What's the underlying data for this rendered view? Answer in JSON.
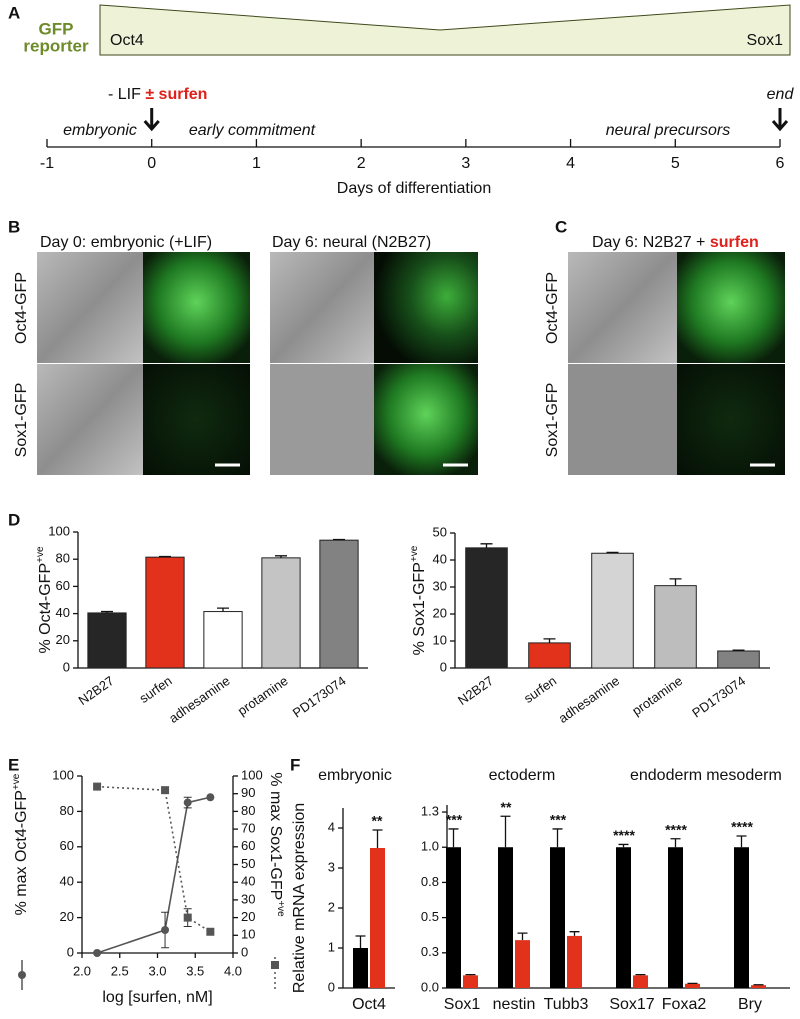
{
  "panel_a": {
    "label": "A",
    "reporter": [
      "GFP",
      "reporter"
    ],
    "gradient": [
      "Oct4",
      "Sox1"
    ],
    "timeline": {
      "xlim": [
        -1,
        6
      ],
      "xticks": [
        -1,
        0,
        1,
        2,
        3,
        4,
        5,
        6
      ],
      "xlabel": "Days of differentiation",
      "phases": [
        "embryonic",
        "early commitment",
        "neural precursors"
      ],
      "events": [
        {
          "day": 0,
          "label": "- LIF",
          "highlight": "± surfen"
        },
        {
          "day": 6,
          "label": "end"
        }
      ]
    }
  },
  "panel_b": {
    "label": "B",
    "titles": [
      "Day 0: embryonic (+LIF)",
      "Day 6: neural (N2B27)"
    ],
    "rows": [
      "Oct4-GFP",
      "Sox1-GFP"
    ]
  },
  "panel_c": {
    "label": "C",
    "title": "Day 6: N2B27 +",
    "highlight": "surfen",
    "rows": [
      "Oct4-GFP",
      "Sox1-GFP"
    ]
  },
  "panel_labels": {
    "d": "D",
    "e": "E",
    "f": "F"
  },
  "chart_data": [
    {
      "type": "bar",
      "ylabel": {
        "text": "% Oct4-GFP",
        "sup": "+ve"
      },
      "categories": [
        "N2B27",
        "surfen",
        "adhesamine",
        "protamine",
        "PD173074"
      ],
      "values": [
        40.5,
        81.5,
        41.5,
        81,
        94
      ],
      "errors": [
        1,
        0.5,
        2.5,
        1.5,
        0.5
      ],
      "colors": [
        "#262626",
        "#e2321c",
        "#ffffff",
        "#c4c4c4",
        "#828282"
      ],
      "ylim": [
        0,
        100
      ],
      "yticks": [
        0,
        20,
        40,
        60,
        80,
        100
      ]
    },
    {
      "type": "bar",
      "ylabel": {
        "text": "% Sox1-GFP",
        "sup": "+ve"
      },
      "categories": [
        "N2B27",
        "surfen",
        "adhesamine",
        "protamine",
        "PD173074"
      ],
      "values": [
        44.5,
        9.3,
        42.5,
        30.5,
        6.3
      ],
      "errors": [
        1.5,
        1.5,
        0.3,
        2.5,
        0.3
      ],
      "colors": [
        "#262626",
        "#e2321c",
        "#d4d4d4",
        "#bdbdbd",
        "#828282"
      ],
      "ylim": [
        0,
        50
      ],
      "yticks": [
        0,
        10,
        20,
        30,
        40,
        50
      ]
    },
    {
      "type": "line",
      "xlabel": "log [surfen, nM]",
      "xlim": [
        2,
        4
      ],
      "xticks": [
        {
          "value": 2,
          "label": "2.0"
        },
        {
          "value": 2.5,
          "label": "2.5"
        },
        {
          "value": 3,
          "label": "3.0"
        },
        {
          "value": 3.5,
          "label": "3.5"
        },
        {
          "value": 4,
          "label": "4.0"
        }
      ],
      "ylim": [
        0,
        100
      ],
      "yticks": [
        0,
        20,
        40,
        60,
        80,
        100
      ],
      "y2lim": [
        0,
        100
      ],
      "y2ticks": [
        0,
        10,
        20,
        30,
        40,
        50,
        60,
        70,
        80,
        90,
        100
      ],
      "ylabel": {
        "text": "% max Oct4-GFP",
        "sup": "+ve"
      },
      "y2label": {
        "text": "% max Sox1-GFP",
        "sup": "+ve"
      },
      "series": [
        {
          "color": "#555555",
          "marker": "circle",
          "style": "solid",
          "x": [
            2.2,
            3.1,
            3.4,
            3.7
          ],
          "values": [
            0,
            13,
            85,
            88
          ],
          "errors": [
            null,
            10,
            3,
            null
          ]
        },
        {
          "color": "#555555",
          "marker": "square",
          "style": "dotted",
          "axis": "y2",
          "x": [
            2.2,
            3.1,
            3.4,
            3.7
          ],
          "values": [
            94,
            92,
            20,
            12
          ],
          "errors": [
            null,
            null,
            5,
            null
          ]
        }
      ]
    },
    {
      "type": "bar",
      "subtitle": "embryonic",
      "ylabel": "Relative mRNA expression",
      "categories": [
        "Oct4"
      ],
      "series": [
        {
          "color": "#000000",
          "values": [
            1.0
          ],
          "errors": [
            0.3
          ]
        },
        {
          "color": "#e2321c",
          "values": [
            3.5
          ],
          "errors": [
            0.45
          ]
        }
      ],
      "significance": [
        "**"
      ],
      "ylim": [
        0,
        4.5
      ],
      "yticks": [
        0,
        1,
        2,
        3,
        4
      ]
    },
    {
      "type": "bar",
      "groups": [
        {
          "label": "ectoderm",
          "categories": [
            "Sox1",
            "nestin",
            "Tubb3"
          ]
        },
        {
          "label": "endoderm",
          "categories": [
            "Sox17",
            "Foxa2"
          ]
        },
        {
          "label": "mesoderm",
          "categories": [
            "Bry"
          ]
        }
      ],
      "series": [
        {
          "color": "#000000",
          "values": [
            1.0,
            1.0,
            1.0,
            1.0,
            1.0,
            1.0
          ],
          "errors": [
            0.13,
            0.22,
            0.13,
            0.02,
            0.06,
            0.08
          ]
        },
        {
          "color": "#e2321c",
          "values": [
            0.09,
            0.34,
            0.37,
            0.09,
            0.03,
            0.02
          ],
          "errors": [
            0.005,
            0.05,
            0.03,
            0.005,
            0.003,
            0.003
          ]
        }
      ],
      "significance": [
        "***",
        "**",
        "***",
        "****",
        "****",
        "****"
      ],
      "ylim": [
        0,
        1.3
      ],
      "yticks": [
        {
          "value": 0,
          "label": "0.0"
        },
        {
          "value": 0.25,
          "label": "0.3"
        },
        {
          "value": 0.5,
          "label": "0.5"
        },
        {
          "value": 0.75,
          "label": "0.8"
        },
        {
          "value": 1,
          "label": "1.0"
        },
        {
          "value": 1.25,
          "label": "1.3"
        }
      ]
    }
  ]
}
